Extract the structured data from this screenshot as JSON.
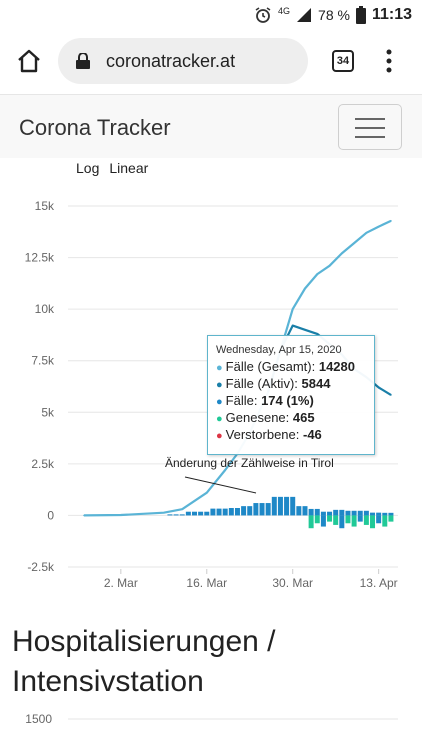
{
  "status": {
    "icon": "alarm-clock-icon",
    "network": "4G",
    "battery": "78 %",
    "time": "11:13"
  },
  "browser": {
    "url": "coronatracker.at",
    "tab_count": "34"
  },
  "navbar": {
    "brand": "Corona Tracker"
  },
  "scale_links": {
    "log": "Log",
    "linear": "Linear"
  },
  "colors": {
    "total": "#5ab4d6",
    "active": "#1a7fa8",
    "new_cases": "#1e88c7",
    "recovered": "#20c997",
    "deceased": "#dc3545"
  },
  "chart_data": {
    "type": "line",
    "yticks": [
      "15k",
      "12.5k",
      "10k",
      "7.5k",
      "5k",
      "2.5k",
      "0",
      "-2.5k"
    ],
    "ylim": [
      -2500,
      15000
    ],
    "xticks": [
      "2. Mar",
      "16. Mar",
      "30. Mar",
      "13. Apr"
    ],
    "annotation": "Änderung der Zählweise in Tirol",
    "series": [
      {
        "name": "Fälle (Gesamt)",
        "x": [
          "Feb 25",
          "Mar 2",
          "Mar 9",
          "Mar 12",
          "Mar 16",
          "Mar 19",
          "Mar 21",
          "Mar 23",
          "Mar 26",
          "Mar 28",
          "Mar 30",
          "Apr 1",
          "Apr 3",
          "Apr 5",
          "Apr 7",
          "Apr 9",
          "Apr 11",
          "Apr 13",
          "Apr 15"
        ],
        "values": [
          0,
          20,
          130,
          300,
          1100,
          2200,
          3000,
          4000,
          6000,
          8000,
          10000,
          11000,
          11700,
          12100,
          12700,
          13200,
          13700,
          14000,
          14280
        ]
      },
      {
        "name": "Fälle (Aktiv)",
        "x": [
          "Mar 26",
          "Mar 28",
          "Mar 30",
          "Apr 1",
          "Apr 3",
          "Apr 5",
          "Apr 7",
          "Apr 9",
          "Apr 11",
          "Apr 13",
          "Apr 15"
        ],
        "values": [
          6000,
          8000,
          9200,
          9000,
          8800,
          8300,
          7800,
          7100,
          6700,
          6200,
          5844
        ]
      }
    ],
    "tooltip": {
      "date": "Wednesday, Apr 15, 2020",
      "rows": [
        {
          "label": "Fälle (Gesamt): ",
          "value": "14280",
          "color": "#5ab4d6"
        },
        {
          "label": "Fälle (Aktiv): ",
          "value": "5844",
          "color": "#1a7fa8"
        },
        {
          "label": "Fälle: ",
          "value": "174 (1%)",
          "color": "#1e88c7"
        },
        {
          "label": "Genesene: ",
          "value": "465",
          "color": "#20c997"
        },
        {
          "label": "Verstorbene: ",
          "value": "-46",
          "color": "#dc3545"
        }
      ]
    }
  },
  "hospital": {
    "title": "Hospitalisierungen / Intensivstation",
    "first_ytick": "1500"
  }
}
